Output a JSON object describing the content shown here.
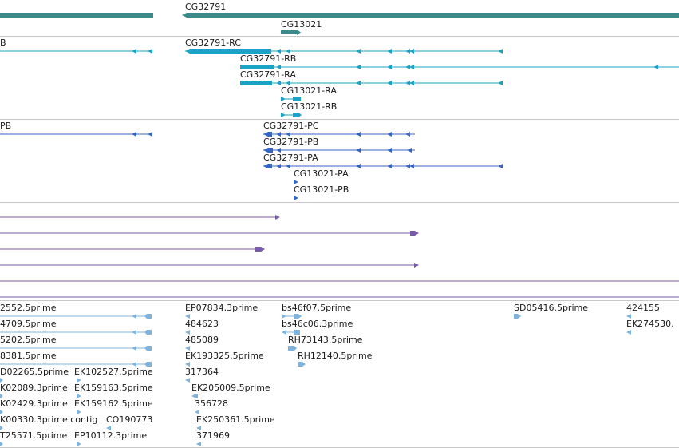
{
  "colors": {
    "gene": "#3c8a8a",
    "mrna": "#1aa3c4",
    "protein": "#3466c0",
    "alignment": "#7a5ba8",
    "est": "#7fb3dc"
  },
  "tracks": {
    "genes": {
      "labels": {
        "cg32791": "CG32791",
        "cg13021": "CG13021"
      }
    },
    "mrna": {
      "labels": {
        "left": "B",
        "cg32791_rc": "CG32791-RC",
        "cg32791_rb": "CG32791-RB",
        "cg32791_ra": "CG32791-RA",
        "cg13021_ra": "CG13021-RA",
        "cg13021_rb": "CG13021-RB"
      }
    },
    "proteins": {
      "labels": {
        "left": "PB",
        "cg32791_pc": "CG32791-PC",
        "cg32791_pb": "CG32791-PB",
        "cg32791_pa": "CG32791-PA",
        "cg13021_pa": "CG13021-PA",
        "cg13021_pb": "CG13021-PB"
      }
    },
    "ests": {
      "labels": [
        "2552.5prime",
        "4709.5prime",
        "5202.5prime",
        "8381.5prime",
        "D02265.5prime",
        "EK102527.5prime",
        "K02089.3prime",
        "EK159163.5prime",
        "K02429.3prime",
        "EK159162.5prime",
        "K00330.3prime.contig",
        "CO190773",
        "T25571.5prime",
        "EP10112.3prime",
        "EP07834.3prime",
        "484623",
        "485089",
        "EK193325.5prime",
        "317364",
        "EK205009.5prime",
        "356728",
        "EK250361.5prime",
        "371969",
        "bs46f07.5prime",
        "bs46c06.3prime",
        "RH73143.5prime",
        "RH12140.5prime",
        "SD05416.5prime",
        "424155",
        "EK274530."
      ]
    }
  }
}
